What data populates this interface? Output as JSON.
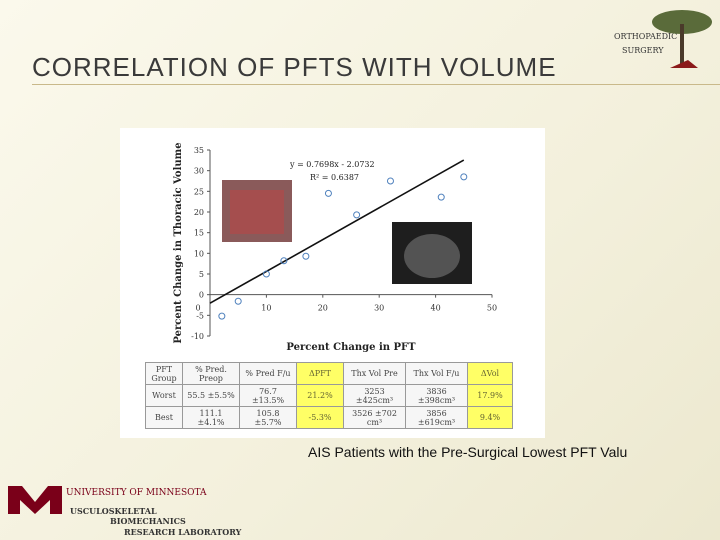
{
  "title": "CORRELATION OF PFTS WITH VOLUME",
  "caption": "AIS Patients with the Pre-Surgical Lowest PFT Valu",
  "logos": {
    "ortho_1": "ORTHOPAEDIC",
    "ortho_2": "SURGERY",
    "university": "UNIVERSITY OF MINNESOTA",
    "lab_1": "USCULOSKELETAL",
    "lab_2": "BIOMECHANICS",
    "lab_3": "RESEARCH  LABORATORY"
  },
  "chart_data": {
    "type": "scatter",
    "x_label": "Percent Change in PFT",
    "y_label": "Percent Change in Thoracic Volume",
    "equation": "y = 0.7698x - 2.0732",
    "r_squared": "R² = 0.6387",
    "trend": {
      "slope": 0.7698,
      "intercept": -2.0732
    },
    "x": [
      2.1,
      5,
      10,
      13.1,
      17,
      21,
      26,
      32,
      41,
      45
    ],
    "values": [
      -5.2,
      -1.6,
      5,
      8.2,
      9.3,
      24.5,
      19.3,
      27.5,
      23.6,
      28.5
    ],
    "color": "#4f81bd",
    "xlim": [
      0,
      50
    ],
    "xticks": [
      0,
      10,
      20,
      30,
      40,
      50
    ],
    "ylim": [
      -10,
      35
    ],
    "yticks": [
      -10,
      -5,
      0,
      5,
      10,
      15,
      20,
      25,
      30,
      35
    ],
    "grid": false
  },
  "table": {
    "rows": [
      [
        "PFT Group",
        "% Pred. Preop",
        "% Pred F/u",
        "ΔPFT",
        "Thx Vol Pre",
        "Thx Vol F/u",
        "ΔVol"
      ],
      [
        "Worst",
        "55.5 ±5.5%",
        "76.7 ±13.5%",
        "21.2%",
        "3253 ±425cm³",
        "3836 ±398cm³",
        "17.9%"
      ],
      [
        "Best",
        "111.1 ±4.1%",
        "105.8 ±5.7%",
        "-5.3%",
        "3526 ±702 cm³",
        "3856 ±619cm³",
        "9.4%"
      ]
    ]
  }
}
